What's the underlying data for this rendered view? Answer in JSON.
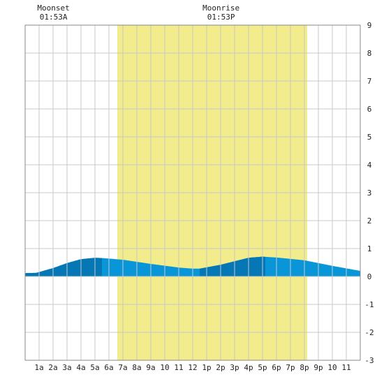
{
  "chart_data": {
    "type": "area",
    "title": "",
    "xlabel": "",
    "ylabel": "",
    "xlim": [
      0,
      24
    ],
    "ylim": [
      -3,
      9
    ],
    "grid": true,
    "x_tick_labels": [
      "1a",
      "2a",
      "3a",
      "4a",
      "5a",
      "6a",
      "7a",
      "8a",
      "9a",
      "10",
      "11",
      "12",
      "1p",
      "2p",
      "3p",
      "4p",
      "5p",
      "6p",
      "7p",
      "8p",
      "9p",
      "10",
      "11"
    ],
    "y_tick_labels": [
      "9",
      "8",
      "7",
      "6",
      "5",
      "4",
      "3",
      "2",
      "1",
      "0",
      "-1",
      "-2",
      "-3"
    ],
    "y_ticks": [
      9,
      8,
      7,
      6,
      5,
      4,
      3,
      2,
      1,
      0,
      -1,
      -2,
      -3
    ],
    "daylight": {
      "start": 6.6,
      "end": 20.2,
      "color": "#f2ec8c"
    },
    "series": [
      {
        "x": [
          0,
          0.8,
          2,
          3,
          4,
          5,
          5.5,
          7,
          9,
          11,
          12,
          12.5,
          14,
          16,
          17,
          17.3,
          18,
          20,
          22,
          24
        ],
        "y": [
          0.12,
          0.13,
          0.3,
          0.48,
          0.62,
          0.67,
          0.66,
          0.6,
          0.45,
          0.32,
          0.28,
          0.28,
          0.42,
          0.67,
          0.71,
          0.7,
          0.68,
          0.58,
          0.38,
          0.2
        ]
      }
    ],
    "tide_colors": {
      "light": "#0896d8",
      "dark": "#0677b5"
    },
    "dark_bands": [
      [
        0,
        5.5
      ],
      [
        12.5,
        17.2
      ]
    ],
    "moon_events": [
      {
        "label": "Moonset",
        "time": "01:53A",
        "x": 1.88
      },
      {
        "label": "Moonrise",
        "time": "01:53P",
        "x": 13.88
      }
    ]
  }
}
